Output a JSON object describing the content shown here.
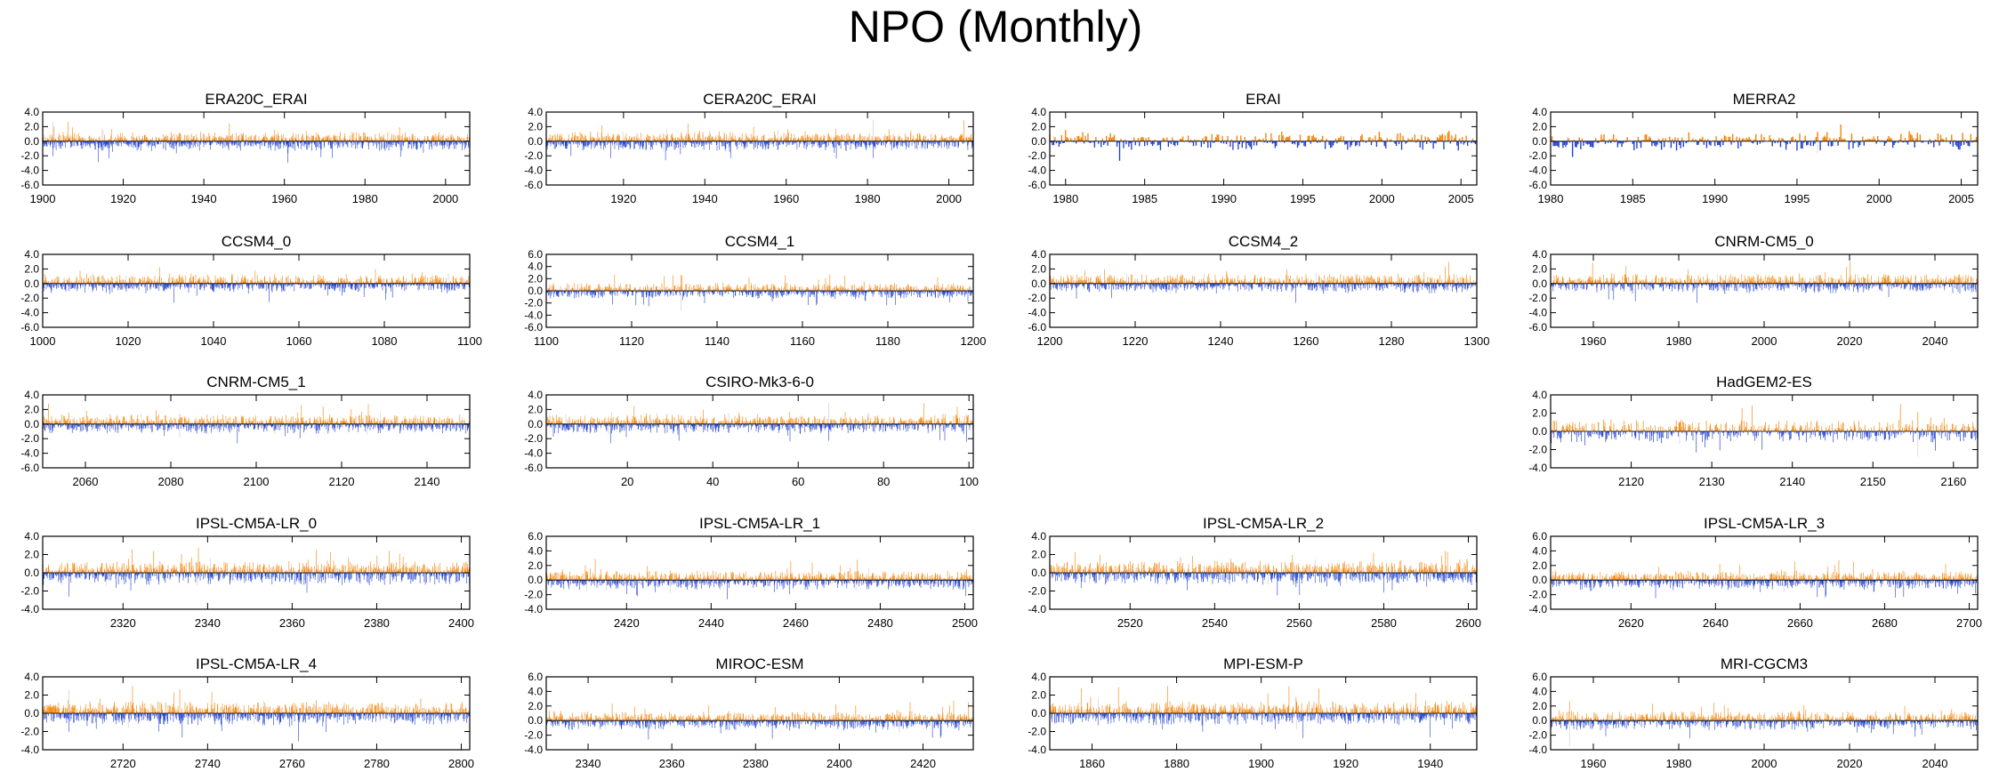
{
  "title": "NPO (Monthly)",
  "colors": {
    "positive": "#f58200",
    "negative": "#1f3fd0",
    "axis": "#000000",
    "faint": "#c8c8c8"
  },
  "chart_data": [
    {
      "type": "bar",
      "title": "ERA20C_ERAI",
      "x_range": [
        1900,
        2006
      ],
      "xticks": [
        1900,
        1920,
        1940,
        1960,
        1980,
        2000
      ],
      "ylim": [
        -6,
        4
      ],
      "yticks": [
        4,
        2,
        0,
        -2,
        -4,
        -6
      ],
      "ytick_labels": [
        "4.0",
        "2.0",
        "0.0",
        "-2.0",
        "-4.0",
        "-6.0"
      ],
      "seed": 11
    },
    {
      "type": "bar",
      "title": "CERA20C_ERAI",
      "x_range": [
        1901,
        2006
      ],
      "xticks": [
        1920,
        1940,
        1960,
        1980,
        2000
      ],
      "ylim": [
        -6,
        4
      ],
      "yticks": [
        4,
        2,
        0,
        -2,
        -4,
        -6
      ],
      "ytick_labels": [
        "4.0",
        "2.0",
        "0.0",
        "-2.0",
        "-4.0",
        "-6.0"
      ],
      "seed": 12
    },
    {
      "type": "bar",
      "title": "ERAI",
      "x_range": [
        1979,
        2006
      ],
      "xticks": [
        1980,
        1985,
        1990,
        1995,
        2000,
        2005
      ],
      "ylim": [
        -6,
        4
      ],
      "yticks": [
        4,
        2,
        0,
        -2,
        -4,
        -6
      ],
      "ytick_labels": [
        "4.0",
        "2.0",
        "0.0",
        "-2.0",
        "-4.0",
        "-6.0"
      ],
      "seed": 13
    },
    {
      "type": "bar",
      "title": "MERRA2",
      "x_range": [
        1980,
        2006
      ],
      "xticks": [
        1980,
        1985,
        1990,
        1995,
        2000,
        2005
      ],
      "ylim": [
        -6,
        4
      ],
      "yticks": [
        4,
        2,
        0,
        -2,
        -4,
        -6
      ],
      "ytick_labels": [
        "4.0",
        "2.0",
        "0.0",
        "-2.0",
        "-4.0",
        "-6.0"
      ],
      "seed": 14
    },
    {
      "type": "bar",
      "title": "CCSM4_0",
      "x_range": [
        1000,
        1100
      ],
      "xticks": [
        1000,
        1020,
        1040,
        1060,
        1080,
        1100
      ],
      "ylim": [
        -6,
        4
      ],
      "yticks": [
        4,
        2,
        0,
        -2,
        -4,
        -6
      ],
      "ytick_labels": [
        "4.0",
        "2.0",
        "0.0",
        "-2.0",
        "-4.0",
        "-6.0"
      ],
      "seed": 21
    },
    {
      "type": "bar",
      "title": "CCSM4_1",
      "x_range": [
        1100,
        1200
      ],
      "xticks": [
        1100,
        1120,
        1140,
        1160,
        1180,
        1200
      ],
      "ylim": [
        -6,
        6
      ],
      "yticks": [
        6,
        4,
        2,
        0,
        -2,
        -4,
        -6
      ],
      "ytick_labels": [
        "6.0",
        "4.0",
        "2.0",
        "0.0",
        "-2.0",
        "-4.0",
        "-6.0"
      ],
      "seed": 22
    },
    {
      "type": "bar",
      "title": "CCSM4_2",
      "x_range": [
        1200,
        1300
      ],
      "xticks": [
        1200,
        1220,
        1240,
        1260,
        1280,
        1300
      ],
      "ylim": [
        -6,
        4
      ],
      "yticks": [
        4,
        2,
        0,
        -2,
        -4,
        -6
      ],
      "ytick_labels": [
        "4.0",
        "2.0",
        "0.0",
        "-2.0",
        "-4.0",
        "-6.0"
      ],
      "seed": 23
    },
    {
      "type": "bar",
      "title": "CNRM-CM5_0",
      "x_range": [
        1950,
        2050
      ],
      "xticks": [
        1960,
        1980,
        2000,
        2020,
        2040
      ],
      "ylim": [
        -6,
        4
      ],
      "yticks": [
        4,
        2,
        0,
        -2,
        -4,
        -6
      ],
      "ytick_labels": [
        "4.0",
        "2.0",
        "0.0",
        "-2.0",
        "-4.0",
        "-6.0"
      ],
      "seed": 24
    },
    {
      "type": "bar",
      "title": "CNRM-CM5_1",
      "x_range": [
        2050,
        2150
      ],
      "xticks": [
        2060,
        2080,
        2100,
        2120,
        2140
      ],
      "ylim": [
        -6,
        4
      ],
      "yticks": [
        4,
        2,
        0,
        -2,
        -4,
        -6
      ],
      "ytick_labels": [
        "4.0",
        "2.0",
        "0.0",
        "-2.0",
        "-4.0",
        "-6.0"
      ],
      "seed": 31
    },
    {
      "type": "bar",
      "title": "CSIRO-Mk3-6-0",
      "x_range": [
        1,
        101
      ],
      "xticks": [
        20,
        40,
        60,
        80,
        100
      ],
      "ylim": [
        -6,
        4
      ],
      "yticks": [
        4,
        2,
        0,
        -2,
        -4,
        -6
      ],
      "ytick_labels": [
        "4.0",
        "2.0",
        "0.0",
        "-2.0",
        "-4.0",
        "-6.0"
      ],
      "seed": 32
    },
    null,
    {
      "type": "bar",
      "title": "HadGEM2-ES",
      "x_range": [
        2110,
        2163
      ],
      "xticks": [
        2120,
        2130,
        2140,
        2150,
        2160
      ],
      "ylim": [
        -4,
        4
      ],
      "yticks": [
        4,
        2,
        0,
        -2,
        -4
      ],
      "ytick_labels": [
        "4.0",
        "2.0",
        "0.0",
        "-2.0",
        "-4.0"
      ],
      "seed": 34
    },
    {
      "type": "bar",
      "title": "IPSL-CM5A-LR_0",
      "x_range": [
        2301,
        2402
      ],
      "xticks": [
        2320,
        2340,
        2360,
        2380,
        2400
      ],
      "ylim": [
        -4,
        4
      ],
      "yticks": [
        4,
        2,
        0,
        -2,
        -4
      ],
      "ytick_labels": [
        "4.0",
        "2.0",
        "0.0",
        "-2.0",
        "-4.0"
      ],
      "seed": 41
    },
    {
      "type": "bar",
      "title": "IPSL-CM5A-LR_1",
      "x_range": [
        2401,
        2502
      ],
      "xticks": [
        2420,
        2440,
        2460,
        2480,
        2500
      ],
      "ylim": [
        -4,
        6
      ],
      "yticks": [
        6,
        4,
        2,
        0,
        -2,
        -4
      ],
      "ytick_labels": [
        "6.0",
        "4.0",
        "2.0",
        "0.0",
        "-2.0",
        "-4.0"
      ],
      "seed": 42
    },
    {
      "type": "bar",
      "title": "IPSL-CM5A-LR_2",
      "x_range": [
        2501,
        2602
      ],
      "xticks": [
        2520,
        2540,
        2560,
        2580,
        2600
      ],
      "ylim": [
        -4,
        4
      ],
      "yticks": [
        4,
        2,
        0,
        -2,
        -4
      ],
      "ytick_labels": [
        "4.0",
        "2.0",
        "0.0",
        "-2.0",
        "-4.0"
      ],
      "seed": 43
    },
    {
      "type": "bar",
      "title": "IPSL-CM5A-LR_3",
      "x_range": [
        2601,
        2702
      ],
      "xticks": [
        2620,
        2640,
        2660,
        2680,
        2700
      ],
      "ylim": [
        -4,
        6
      ],
      "yticks": [
        6,
        4,
        2,
        0,
        -2,
        -4
      ],
      "ytick_labels": [
        "6.0",
        "4.0",
        "2.0",
        "0.0",
        "-2.0",
        "-4.0"
      ],
      "seed": 44
    },
    {
      "type": "bar",
      "title": "IPSL-CM5A-LR_4",
      "x_range": [
        2701,
        2802
      ],
      "xticks": [
        2720,
        2740,
        2760,
        2780,
        2800
      ],
      "ylim": [
        -4,
        4
      ],
      "yticks": [
        4,
        2,
        0,
        -2,
        -4
      ],
      "ytick_labels": [
        "4.0",
        "2.0",
        "0.0",
        "-2.0",
        "-4.0"
      ],
      "seed": 51
    },
    {
      "type": "bar",
      "title": "MIROC-ESM",
      "x_range": [
        2330,
        2432
      ],
      "xticks": [
        2340,
        2360,
        2380,
        2400,
        2420
      ],
      "ylim": [
        -4,
        6
      ],
      "yticks": [
        6,
        4,
        2,
        0,
        -2,
        -4
      ],
      "ytick_labels": [
        "6.0",
        "4.0",
        "2.0",
        "0.0",
        "-2.0",
        "-4.0"
      ],
      "seed": 52
    },
    {
      "type": "bar",
      "title": "MPI-ESM-P",
      "x_range": [
        1850,
        1951
      ],
      "xticks": [
        1860,
        1880,
        1900,
        1920,
        1940
      ],
      "ylim": [
        -4,
        4
      ],
      "yticks": [
        4,
        2,
        0,
        -2,
        -4
      ],
      "ytick_labels": [
        "4.0",
        "2.0",
        "0.0",
        "-2.0",
        "-4.0"
      ],
      "seed": 53
    },
    {
      "type": "bar",
      "title": "MRI-CGCM3",
      "x_range": [
        1950,
        2050
      ],
      "xticks": [
        1960,
        1980,
        2000,
        2020,
        2040
      ],
      "ylim": [
        -4,
        6
      ],
      "yticks": [
        6,
        4,
        2,
        0,
        -2,
        -4
      ],
      "ytick_labels": [
        "6.0",
        "4.0",
        "2.0",
        "0.0",
        "-2.0",
        "-4.0"
      ],
      "seed": 54
    }
  ]
}
